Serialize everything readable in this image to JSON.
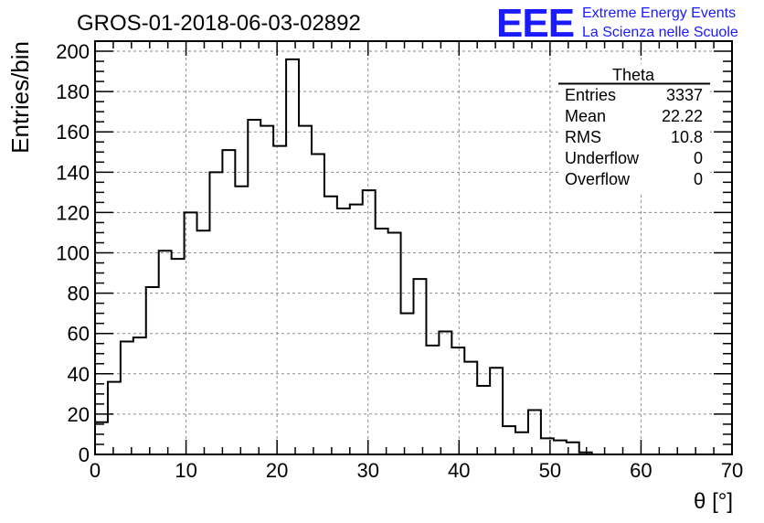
{
  "title": "GROS-01-2018-06-03-02892",
  "logo": {
    "mark": "EEE",
    "line1": "Extreme Energy Events",
    "line2": "La Scienza nelle Scuole",
    "color": "#1a1aff"
  },
  "stats": {
    "name": "Theta",
    "rows": [
      {
        "label": "Entries",
        "value": "3337"
      },
      {
        "label": "Mean",
        "value": "22.22"
      },
      {
        "label": "RMS",
        "value": "10.8"
      },
      {
        "label": "Underflow",
        "value": "0"
      },
      {
        "label": "Overflow",
        "value": "0"
      }
    ]
  },
  "chart_data": {
    "type": "bar",
    "style": "step-histogram",
    "xlabel": "θ [°]",
    "ylabel": "Entries/bin",
    "xlim": [
      0,
      70
    ],
    "ylim": [
      0,
      205
    ],
    "grid": true,
    "bin_width": 1.4,
    "bin_edges_start": 0,
    "xticks": [
      0,
      10,
      20,
      30,
      40,
      50,
      60,
      70
    ],
    "yticks": [
      0,
      20,
      40,
      60,
      80,
      100,
      120,
      140,
      160,
      180,
      200
    ],
    "values": [
      16,
      36,
      56,
      58,
      83,
      101,
      97,
      120,
      111,
      140,
      151,
      133,
      166,
      163,
      153,
      196,
      163,
      149,
      128,
      122,
      124,
      131,
      112,
      110,
      70,
      87,
      54,
      61,
      53,
      46,
      34,
      43,
      14,
      11,
      22,
      8,
      7,
      6,
      1,
      0,
      0,
      0,
      0,
      0,
      0,
      0,
      0,
      0,
      0,
      0
    ]
  }
}
